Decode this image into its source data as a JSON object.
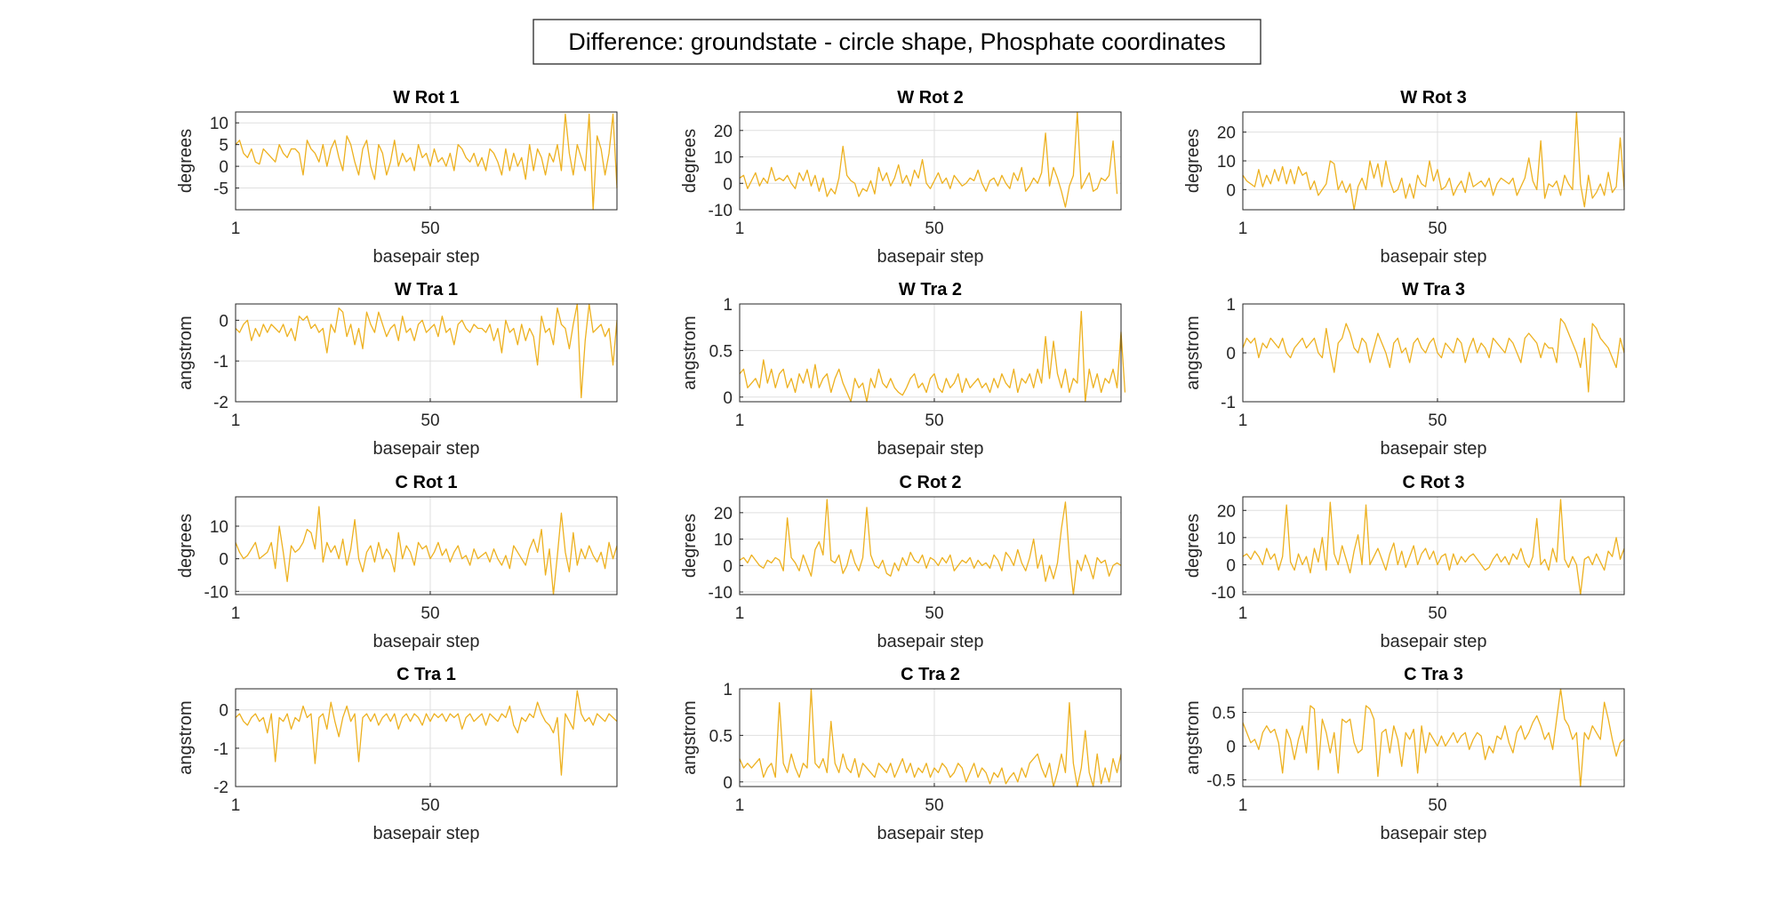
{
  "figure_title": "Difference: groundstate - circle shape, Phosphate coordinates",
  "series_color": "#EDB120",
  "chart_data": [
    {
      "type": "line",
      "title": "W Rot 1",
      "xlabel": "basepair step",
      "ylabel": "degrees",
      "xlim": [
        1,
        97
      ],
      "ylim": [
        -10,
        12.5
      ],
      "xticks": [
        1,
        50
      ],
      "yticks": [
        -5,
        0,
        5,
        10
      ],
      "grid": true,
      "x_start": 1,
      "values": [
        5,
        6,
        3,
        2,
        4,
        1,
        0.5,
        4,
        3,
        2,
        1,
        5,
        3,
        2,
        4,
        4,
        3,
        -2,
        6,
        4,
        3,
        1,
        5,
        0,
        4,
        6,
        2,
        -1,
        7,
        5,
        1,
        -2,
        4,
        6,
        0,
        -3,
        5,
        3,
        -2,
        1,
        6,
        0,
        3,
        1,
        2,
        -1,
        5,
        2,
        3,
        0,
        4,
        1,
        2,
        0,
        3,
        -1,
        5,
        4,
        2,
        1,
        3,
        0,
        2,
        -1,
        4,
        3,
        1,
        -2,
        4,
        -1,
        3,
        0,
        2,
        -3,
        5,
        -1,
        4,
        2,
        -2,
        3,
        1,
        5,
        -1,
        12,
        3,
        -2,
        5,
        2,
        -1,
        12,
        -10,
        7,
        4,
        -2,
        3,
        12,
        -5
      ]
    },
    {
      "type": "line",
      "title": "W Rot 2",
      "xlabel": "basepair step",
      "ylabel": "degrees",
      "xlim": [
        1,
        97
      ],
      "ylim": [
        -10,
        27
      ],
      "xticks": [
        1,
        50
      ],
      "yticks": [
        -10,
        0,
        10,
        20
      ],
      "grid": true,
      "x_start": 1,
      "values": [
        2,
        3,
        -2,
        1,
        4,
        -1,
        2,
        0,
        6,
        1,
        2,
        1,
        3,
        0,
        -2,
        4,
        1,
        5,
        -1,
        3,
        -3,
        2,
        -5,
        -2,
        -4,
        2,
        14,
        3,
        1,
        0,
        -5,
        -2,
        -3,
        1,
        -4,
        6,
        1,
        4,
        -1,
        2,
        7,
        0,
        3,
        -1,
        5,
        2,
        9,
        0,
        -2,
        1,
        4,
        0,
        2,
        -2,
        3,
        1,
        -1,
        0,
        2,
        1,
        5,
        0,
        -3,
        1,
        2,
        -1,
        3,
        0,
        -2,
        4,
        1,
        6,
        -3,
        -1,
        2,
        0,
        4,
        19,
        -1,
        6,
        2,
        -3,
        -9,
        -1,
        3,
        27,
        -2,
        1,
        4,
        -3,
        -2,
        2,
        1,
        3,
        16,
        -4
      ]
    },
    {
      "type": "line",
      "title": "W Rot 3",
      "xlabel": "basepair step",
      "ylabel": "degrees",
      "xlim": [
        1,
        97
      ],
      "ylim": [
        -7,
        27
      ],
      "xticks": [
        1,
        50
      ],
      "yticks": [
        0,
        10,
        20
      ],
      "grid": true,
      "x_start": 1,
      "values": [
        5,
        3,
        2,
        1,
        7,
        1,
        5,
        2,
        7,
        3,
        8,
        2,
        7,
        2,
        8,
        5,
        6,
        0,
        3,
        -2,
        0,
        2,
        10,
        9,
        0,
        3,
        -1,
        2,
        -7,
        1,
        4,
        0,
        10,
        4,
        9,
        1,
        10,
        3,
        -1,
        0,
        4,
        -3,
        2,
        -3,
        5,
        2,
        1,
        10,
        3,
        7,
        0,
        1,
        4,
        -2,
        1,
        3,
        -1,
        6,
        1,
        2,
        3,
        1,
        4,
        -2,
        2,
        4,
        3,
        2,
        4,
        -2,
        1,
        4,
        11,
        3,
        0,
        17,
        -3,
        2,
        1,
        3,
        -2,
        5,
        2,
        0,
        27,
        2,
        -6,
        5,
        -3,
        -1,
        2,
        -2,
        6,
        -1,
        1,
        18,
        0
      ]
    },
    {
      "type": "line",
      "title": "W Tra 1",
      "xlabel": "basepair step",
      "ylabel": "angstrom",
      "xlim": [
        1,
        97
      ],
      "ylim": [
        -2,
        0.4
      ],
      "xticks": [
        1,
        50
      ],
      "yticks": [
        -2,
        -1,
        0
      ],
      "grid": true,
      "x_start": 1,
      "values": [
        -0.2,
        -0.3,
        -0.1,
        0,
        -0.5,
        -0.2,
        -0.4,
        -0.1,
        -0.3,
        -0.1,
        -0.2,
        -0.3,
        -0.1,
        -0.4,
        -0.2,
        -0.5,
        0.1,
        0,
        0.1,
        -0.2,
        -0.1,
        -0.3,
        -0.2,
        -0.8,
        -0.1,
        -0.3,
        0.3,
        0.2,
        -0.4,
        -0.1,
        -0.6,
        -0.2,
        -0.7,
        0.2,
        -0.1,
        -0.3,
        0.2,
        -0.1,
        -0.4,
        -0.2,
        -0.1,
        -0.5,
        0.1,
        -0.3,
        -0.2,
        -0.5,
        -0.1,
        0,
        -0.3,
        -0.2,
        -0.1,
        -0.4,
        0.1,
        -0.3,
        -0.2,
        -0.6,
        -0.1,
        0,
        -0.2,
        -0.3,
        -0.1,
        -0.2,
        -0.2,
        -0.3,
        -0.1,
        -0.5,
        -0.2,
        -0.8,
        0,
        -0.3,
        -0.2,
        -0.6,
        -0.1,
        -0.5,
        -0.2,
        -0.4,
        -1.1,
        0.1,
        -0.3,
        -0.2,
        -0.6,
        0.3,
        -0.1,
        -0.2,
        -0.7,
        -0.1,
        0.4,
        -1.9,
        -0.5,
        0.4,
        -0.3,
        -0.2,
        -0.1,
        -0.4,
        -0.2,
        -1.1,
        0
      ]
    },
    {
      "type": "line",
      "title": "W Tra 2",
      "xlabel": "basepair step",
      "ylabel": "angstrom",
      "xlim": [
        1,
        97
      ],
      "ylim": [
        -0.05,
        1
      ],
      "xticks": [
        1,
        50
      ],
      "yticks": [
        0,
        0.5,
        1
      ],
      "grid": true,
      "x_start": 1,
      "values": [
        0.25,
        0.3,
        0.1,
        0.15,
        0.2,
        0.1,
        0.4,
        0.15,
        0.3,
        0.1,
        0.25,
        0.3,
        0.1,
        0.2,
        0.05,
        0.25,
        0.15,
        0.3,
        0.1,
        0.35,
        0.1,
        0.2,
        0.25,
        0.05,
        0.2,
        0.3,
        0.15,
        0.05,
        -0.05,
        0.2,
        0.1,
        0.15,
        -0.05,
        0.2,
        0.1,
        0.3,
        0.15,
        0.1,
        0.2,
        0.1,
        0.05,
        0.02,
        0.1,
        0.2,
        0.25,
        0.1,
        0.15,
        0.05,
        0.2,
        0.25,
        0.1,
        0.05,
        0.2,
        0.1,
        0.15,
        0.25,
        0.05,
        0.2,
        0.1,
        0.15,
        0.2,
        0.1,
        0.15,
        0.05,
        0.2,
        0.1,
        0.25,
        0.15,
        0.1,
        0.3,
        0.05,
        0.2,
        0.15,
        0.25,
        0.1,
        0.3,
        0.15,
        0.65,
        0.2,
        0.6,
        0.25,
        0.1,
        0.3,
        0.05,
        0.2,
        0.15,
        0.92,
        -0.05,
        0.3,
        0.1,
        0.25,
        0.05,
        0.2,
        0.15,
        0.3,
        0.1,
        0.7,
        0.05
      ]
    },
    {
      "type": "line",
      "title": "W Tra 3",
      "xlabel": "basepair step",
      "ylabel": "angstrom",
      "xlim": [
        1,
        97
      ],
      "ylim": [
        -1,
        1
      ],
      "xticks": [
        1,
        50
      ],
      "yticks": [
        -1,
        0,
        1
      ],
      "grid": true,
      "x_start": 1,
      "values": [
        0.1,
        0.3,
        0.2,
        0.3,
        -0.1,
        0.2,
        0.1,
        0.3,
        0.2,
        0.1,
        0.3,
        0,
        -0.1,
        0.1,
        0.2,
        0.3,
        0.1,
        0.2,
        0.3,
        0,
        -0.1,
        0.5,
        0,
        -0.4,
        0.2,
        0.3,
        0.6,
        0.4,
        0.1,
        0,
        0.3,
        0.2,
        -0.2,
        0.1,
        0.4,
        0.2,
        0,
        -0.3,
        0.2,
        0.3,
        0,
        0.1,
        -0.2,
        0.2,
        0.3,
        0.1,
        0,
        0.2,
        0.3,
        0,
        -0.1,
        0.2,
        0.1,
        0,
        0.3,
        0.2,
        -0.2,
        0.1,
        0.3,
        0,
        0.2,
        0.1,
        -0.1,
        0.3,
        0.2,
        0.1,
        0,
        0.3,
        0.2,
        0,
        -0.2,
        0.3,
        0.4,
        0.3,
        0.2,
        -0.1,
        0.2,
        0.1,
        0.1,
        -0.2,
        0.7,
        0.6,
        0.4,
        0.2,
        0,
        -0.3,
        0.3,
        -0.8,
        0.6,
        0.5,
        0.3,
        0.2,
        0.1,
        -0.1,
        -0.3,
        0.3,
        0
      ]
    },
    {
      "type": "line",
      "title": "C Rot 1",
      "xlabel": "basepair step",
      "ylabel": "degrees",
      "xlim": [
        1,
        97
      ],
      "ylim": [
        -11,
        19
      ],
      "xticks": [
        1,
        50
      ],
      "yticks": [
        -10,
        0,
        10
      ],
      "grid": true,
      "x_start": 1,
      "values": [
        5,
        2,
        0,
        1,
        3,
        5,
        0,
        1,
        2,
        5,
        -3,
        10,
        2,
        -7,
        4,
        2,
        3,
        5,
        9,
        8,
        3,
        16,
        -1,
        5,
        2,
        4,
        0,
        6,
        -2,
        3,
        12,
        0,
        -4,
        2,
        4,
        -1,
        5,
        0,
        3,
        1,
        -4,
        8,
        0,
        4,
        2,
        -2,
        5,
        3,
        4,
        0,
        2,
        5,
        1,
        3,
        -1,
        2,
        4,
        0,
        1,
        -2,
        3,
        0,
        1,
        2,
        -1,
        3,
        0,
        -2,
        1,
        -3,
        4,
        2,
        0,
        -2,
        3,
        6,
        2,
        9,
        -5,
        3,
        -11,
        1,
        14,
        2,
        -4,
        8,
        -2,
        3,
        0,
        4,
        1,
        -1,
        2,
        -3,
        5,
        0,
        4
      ]
    },
    {
      "type": "line",
      "title": "C Rot 2",
      "xlabel": "basepair step",
      "ylabel": "degrees",
      "xlim": [
        1,
        97
      ],
      "ylim": [
        -11,
        26
      ],
      "xticks": [
        1,
        50
      ],
      "yticks": [
        -10,
        0,
        10,
        20
      ],
      "grid": true,
      "x_start": 1,
      "values": [
        2,
        3,
        1,
        4,
        2,
        0,
        -1,
        2,
        1,
        3,
        2,
        -2,
        18,
        3,
        1,
        -2,
        4,
        0,
        -4,
        6,
        9,
        4,
        25,
        2,
        1,
        4,
        -3,
        0,
        6,
        1,
        -2,
        3,
        22,
        4,
        0,
        -1,
        2,
        -3,
        -4,
        1,
        -2,
        3,
        0,
        5,
        2,
        1,
        4,
        -1,
        3,
        2,
        0,
        3,
        1,
        4,
        -2,
        0,
        2,
        1,
        3,
        -1,
        2,
        0,
        1,
        -1,
        4,
        2,
        -2,
        5,
        3,
        0,
        6,
        1,
        -2,
        3,
        10,
        -1,
        4,
        -6,
        0,
        -5,
        1,
        14,
        24,
        3,
        -11,
        2,
        -2,
        4,
        0,
        -5,
        3,
        1,
        2,
        -4,
        0,
        1,
        0
      ]
    },
    {
      "type": "line",
      "title": "C Rot 3",
      "xlabel": "basepair step",
      "ylabel": "degrees",
      "xlim": [
        1,
        97
      ],
      "ylim": [
        -11,
        25
      ],
      "xticks": [
        1,
        50
      ],
      "yticks": [
        -10,
        0,
        10,
        20
      ],
      "grid": true,
      "x_start": 1,
      "values": [
        3,
        4,
        2,
        5,
        3,
        0,
        6,
        2,
        4,
        -2,
        3,
        22,
        1,
        -2,
        4,
        0,
        3,
        -3,
        6,
        1,
        10,
        -2,
        23,
        4,
        0,
        7,
        2,
        -3,
        5,
        11,
        0,
        22,
        0,
        3,
        6,
        2,
        -2,
        4,
        8,
        0,
        5,
        -1,
        3,
        7,
        0,
        4,
        6,
        2,
        5,
        0,
        3,
        4,
        -2,
        4,
        0,
        3,
        1,
        3,
        4,
        2,
        0,
        -2,
        -1,
        2,
        4,
        1,
        3,
        0,
        4,
        2,
        6,
        1,
        -1,
        3,
        17,
        0,
        2,
        -2,
        6,
        1,
        24,
        2,
        -1,
        3,
        0,
        -11,
        2,
        3,
        0,
        4,
        1,
        -2,
        5,
        3,
        10,
        2,
        6
      ]
    },
    {
      "type": "line",
      "title": "C Tra 1",
      "xlabel": "basepair step",
      "ylabel": "angstrom",
      "xlim": [
        1,
        97
      ],
      "ylim": [
        -2,
        0.55
      ],
      "xticks": [
        1,
        50
      ],
      "yticks": [
        -2,
        -1,
        0
      ],
      "grid": true,
      "x_start": 1,
      "values": [
        -0.2,
        -0.1,
        -0.3,
        -0.4,
        -0.2,
        -0.1,
        -0.3,
        -0.2,
        -0.6,
        -0.1,
        -1.35,
        -0.2,
        -0.3,
        -0.1,
        -0.5,
        -0.2,
        -0.3,
        0.1,
        -0.2,
        -0.1,
        -1.4,
        -0.2,
        -0.1,
        -0.5,
        0.2,
        -0.3,
        -0.7,
        -0.2,
        0.1,
        -0.3,
        -0.1,
        -1.35,
        -0.2,
        -0.1,
        -0.3,
        -0.1,
        -0.4,
        -0.2,
        -0.1,
        -0.3,
        -0.1,
        -0.5,
        -0.2,
        -0.1,
        -0.3,
        -0.1,
        -0.2,
        -0.4,
        -0.1,
        -0.3,
        -0.1,
        -0.2,
        -0.1,
        -0.3,
        -0.1,
        -0.2,
        -0.1,
        -0.5,
        -0.2,
        -0.1,
        -0.3,
        -0.2,
        -0.1,
        -0.4,
        -0.1,
        -0.2,
        -0.3,
        -0.1,
        -0.2,
        0.1,
        -0.4,
        -0.6,
        -0.2,
        -0.3,
        -0.1,
        -0.2,
        0.2,
        -0.1,
        -0.3,
        -0.4,
        -0.6,
        -0.2,
        -1.7,
        -0.1,
        -0.3,
        -0.5,
        0.5,
        -0.1,
        -0.3,
        -0.2,
        -0.4,
        -0.1,
        -0.2,
        -0.3,
        -0.1,
        -0.2,
        -0.3
      ]
    },
    {
      "type": "line",
      "title": "C Tra 2",
      "xlabel": "basepair step",
      "ylabel": "angstrom",
      "xlim": [
        1,
        97
      ],
      "ylim": [
        -0.05,
        1
      ],
      "xticks": [
        1,
        50
      ],
      "yticks": [
        0,
        0.5,
        1
      ],
      "grid": true,
      "x_start": 1,
      "values": [
        0.25,
        0.15,
        0.2,
        0.15,
        0.2,
        0.25,
        0.05,
        0.15,
        0.2,
        0.05,
        0.85,
        0.2,
        0.1,
        0.3,
        0.15,
        0.05,
        0.2,
        0.15,
        1,
        0.2,
        0.15,
        0.25,
        0.1,
        0.65,
        0.2,
        0.1,
        0.3,
        0.15,
        0.1,
        0.25,
        0.05,
        0.2,
        0.15,
        0.1,
        0.05,
        0.2,
        0.15,
        0.1,
        0.2,
        0.05,
        0.15,
        0.25,
        0.1,
        0.2,
        0.05,
        0.15,
        0.1,
        0.2,
        0.05,
        0.15,
        0.1,
        0.2,
        0.15,
        0.05,
        0.1,
        0.2,
        0.15,
        0,
        0.1,
        0.2,
        0.05,
        0.15,
        0.1,
        -0.02,
        0.1,
        0.05,
        0.15,
        -0.02,
        0.05,
        0.1,
        0,
        0.15,
        0.05,
        0.2,
        0.25,
        0.3,
        0.15,
        0.05,
        0.2,
        -0.05,
        0.1,
        0.3,
        0.1,
        0.85,
        0.2,
        -0.05,
        0.15,
        0.55,
        0.1,
        -0.05,
        0.3,
        -0.02,
        0.15,
        0,
        0.25,
        0.1,
        0.3
      ]
    },
    {
      "type": "line",
      "title": "C Tra 3",
      "xlabel": "basepair step",
      "ylabel": "angstrom",
      "xlim": [
        1,
        97
      ],
      "ylim": [
        -0.6,
        0.85
      ],
      "xticks": [
        1,
        50
      ],
      "yticks": [
        -0.5,
        0,
        0.5
      ],
      "grid": true,
      "x_start": 1,
      "values": [
        0.35,
        0.2,
        0.05,
        0.1,
        -0.05,
        0.2,
        0.3,
        0.2,
        0.25,
        0.05,
        -0.4,
        0.25,
        0.1,
        -0.2,
        0.1,
        0.3,
        -0.1,
        0.6,
        0.55,
        -0.35,
        0.4,
        0.2,
        -0.1,
        0.2,
        -0.4,
        0.4,
        0.35,
        0.4,
        0.05,
        -0.1,
        -0.05,
        0.6,
        0.55,
        0.4,
        -0.45,
        0.2,
        0.25,
        -0.1,
        0.3,
        0.1,
        -0.3,
        0.2,
        0.1,
        0.25,
        -0.4,
        0.3,
        -0.1,
        0.2,
        0.1,
        0,
        0.15,
        0,
        0.1,
        0.2,
        0.05,
        0.15,
        0.2,
        -0.05,
        0.1,
        0.2,
        0.15,
        -0.2,
        0,
        -0.1,
        0.15,
        0.1,
        0.3,
        0.05,
        -0.1,
        0.2,
        0.3,
        0.1,
        0.2,
        0.35,
        0.45,
        0.3,
        0.1,
        0.2,
        -0.05,
        0.4,
        0.85,
        0.4,
        0.3,
        0.1,
        0.2,
        -0.6,
        0.2,
        0.1,
        0.3,
        0.2,
        0.1,
        0.65,
        0.4,
        0.1,
        -0.15,
        0.05,
        0.1
      ]
    }
  ]
}
